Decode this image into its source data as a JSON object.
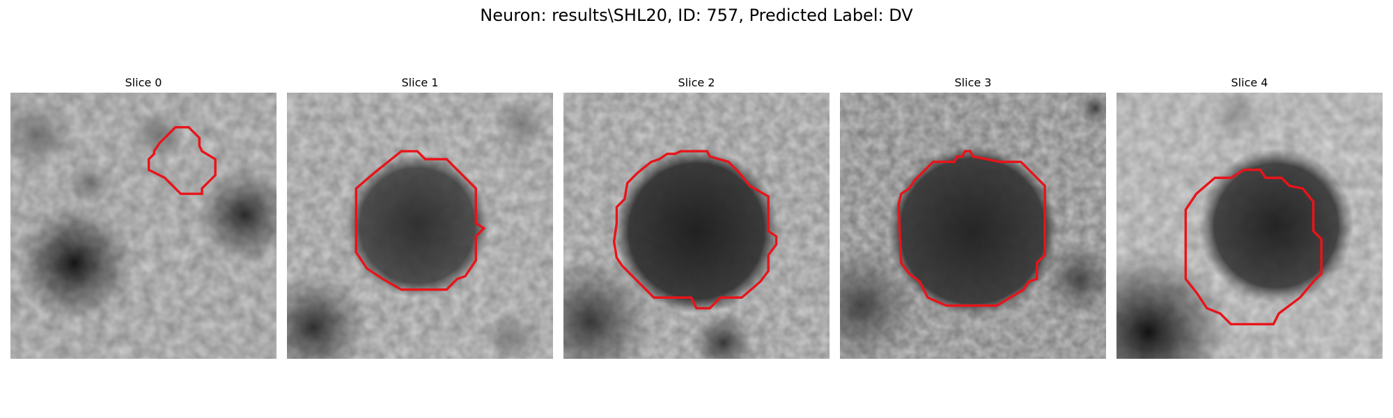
{
  "title": "Neuron: results\\SHL20, ID: 757, Predicted Label: DV",
  "outline_color": "#e8141a",
  "slices": [
    {
      "label": "Slice 0"
    },
    {
      "label": "Slice 1"
    },
    {
      "label": "Slice 2"
    },
    {
      "label": "Slice 3"
    },
    {
      "label": "Slice 4"
    }
  ]
}
